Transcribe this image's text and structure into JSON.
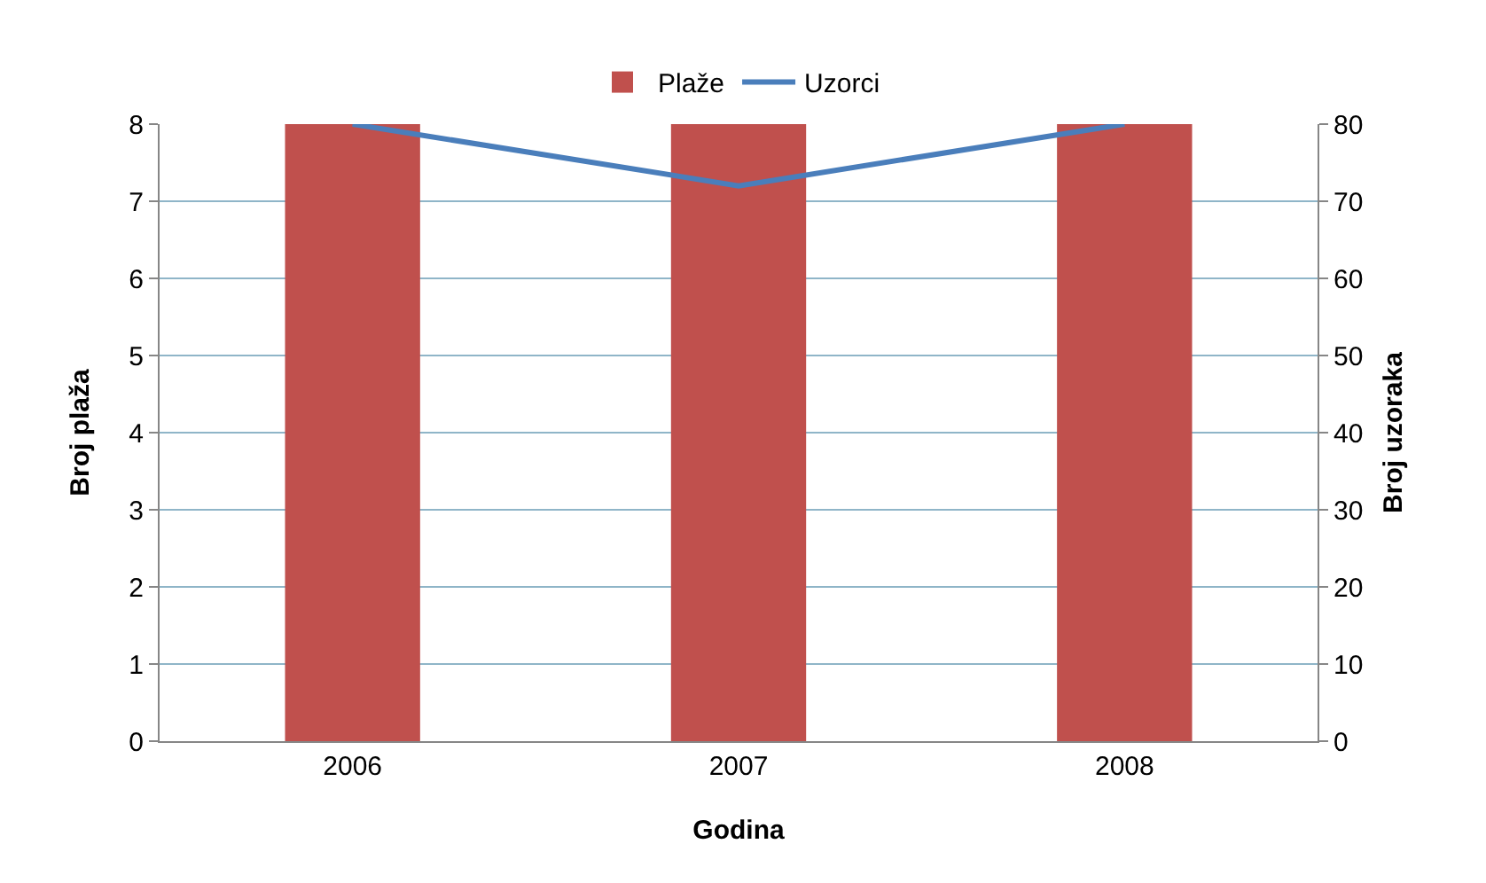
{
  "chart_data": {
    "type": "bar",
    "xlabel": "Godina",
    "ylabel": "Broj plaža",
    "y2label": "Broj uzoraka",
    "categories": [
      "2006",
      "2007",
      "2008"
    ],
    "series": [
      {
        "name": "Plaže",
        "color": "#c0504d",
        "values": [
          8,
          8,
          8
        ]
      },
      {
        "name": "Uzorci",
        "type": "line",
        "axis": "y2",
        "color": "#4a7ebb",
        "values": [
          80,
          72,
          80
        ]
      }
    ],
    "ylim": [
      0,
      8
    ],
    "yticks": [
      0,
      1,
      2,
      3,
      4,
      5,
      6,
      7,
      8
    ],
    "y2lim": [
      0,
      80
    ],
    "y2ticks": [
      0,
      10,
      20,
      30,
      40,
      50,
      60,
      70,
      80
    ],
    "grid": "y",
    "legend": "top",
    "marker": "none"
  }
}
